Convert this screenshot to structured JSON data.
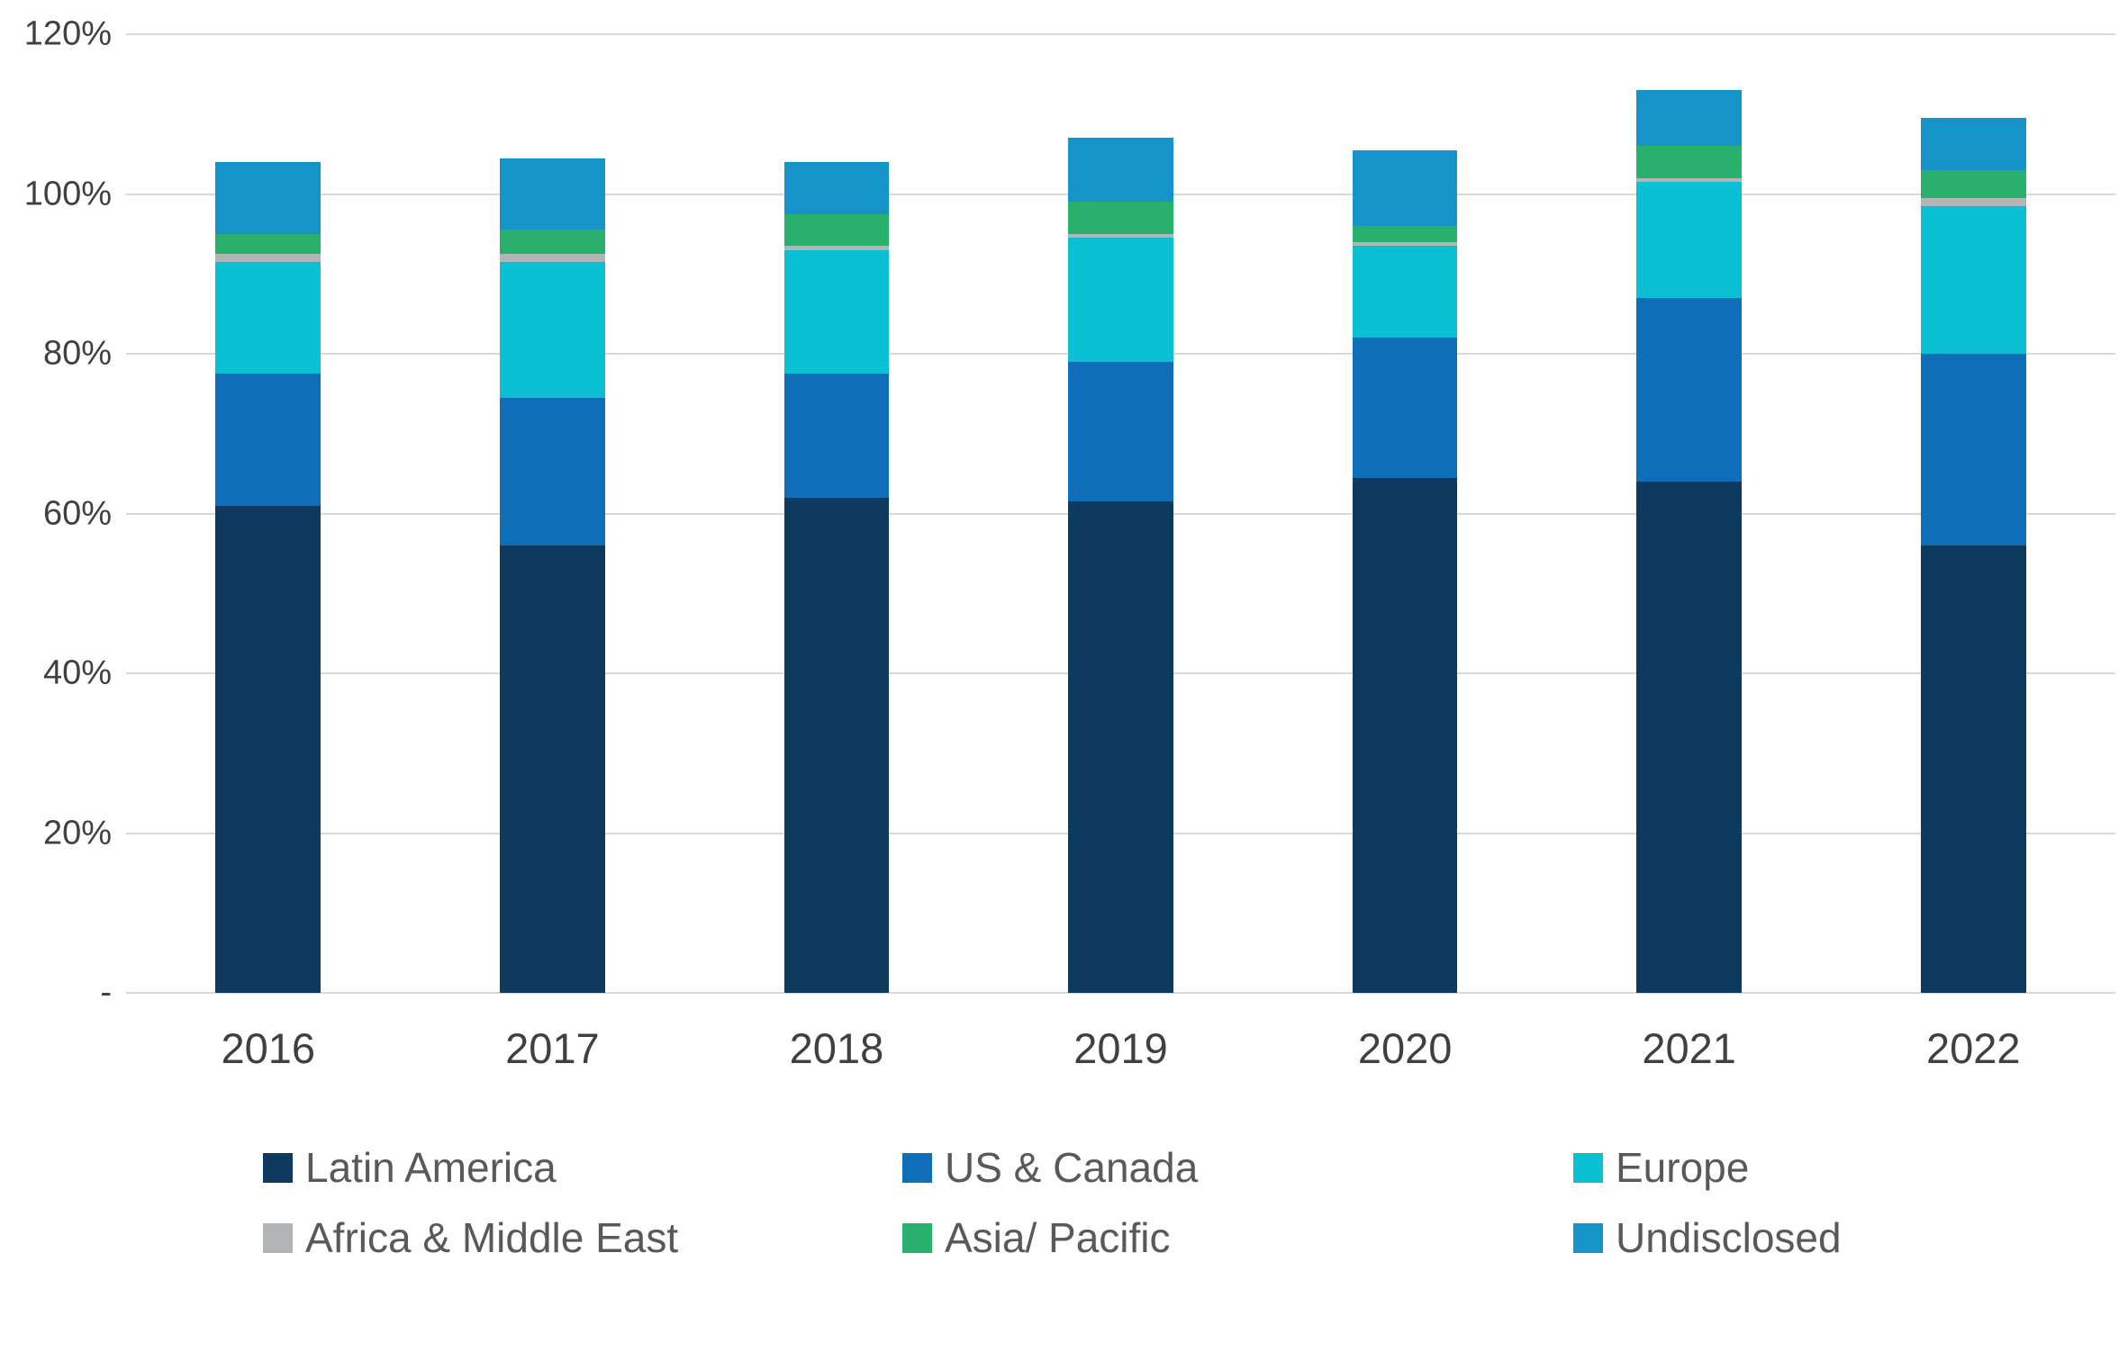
{
  "chart_data": {
    "type": "bar",
    "stacked": true,
    "title": "",
    "xlabel": "",
    "ylabel": "",
    "ylim": [
      0,
      120
    ],
    "grid": true,
    "legend_position": "bottom",
    "categories": [
      "2016",
      "2017",
      "2018",
      "2019",
      "2020",
      "2021",
      "2022"
    ],
    "series": [
      {
        "name": "Latin America",
        "color": "#0d3a5e",
        "values": [
          61,
          56,
          62,
          61.5,
          64.5,
          64,
          56
        ]
      },
      {
        "name": "US & Canada",
        "color": "#0e6fb8",
        "values": [
          16.5,
          18.5,
          15.5,
          17.5,
          17.5,
          23,
          24
        ]
      },
      {
        "name": "Europe",
        "color": "#0bc0d2",
        "values": [
          14,
          17,
          15.5,
          15.5,
          11.5,
          14.5,
          18.5
        ]
      },
      {
        "name": "Africa & Middle East",
        "color": "#b2b5b6",
        "values": [
          1,
          1,
          0.5,
          0.5,
          0.5,
          0.5,
          1
        ]
      },
      {
        "name": "Asia/ Pacific",
        "color": "#28b06c",
        "values": [
          2.5,
          3,
          4,
          4,
          2,
          4,
          3.5
        ]
      },
      {
        "name": "Undisclosed",
        "color": "#1494c9",
        "values": [
          9,
          9,
          6.5,
          8,
          9.5,
          7,
          6.5
        ]
      }
    ],
    "y_axis": {
      "max": 120,
      "min": 0,
      "ticks": [
        {
          "value": 120,
          "label": "120%"
        },
        {
          "value": 100,
          "label": "100%"
        },
        {
          "value": 80,
          "label": "80%"
        },
        {
          "value": 60,
          "label": "60%"
        },
        {
          "value": 40,
          "label": "40%"
        },
        {
          "value": 20,
          "label": "20%"
        },
        {
          "value": 0,
          "label": "-"
        }
      ]
    }
  },
  "colors": {
    "gridline": "#d9d9d9",
    "axis_text": "#404040",
    "legend_text": "#595959",
    "background": "#ffffff"
  }
}
